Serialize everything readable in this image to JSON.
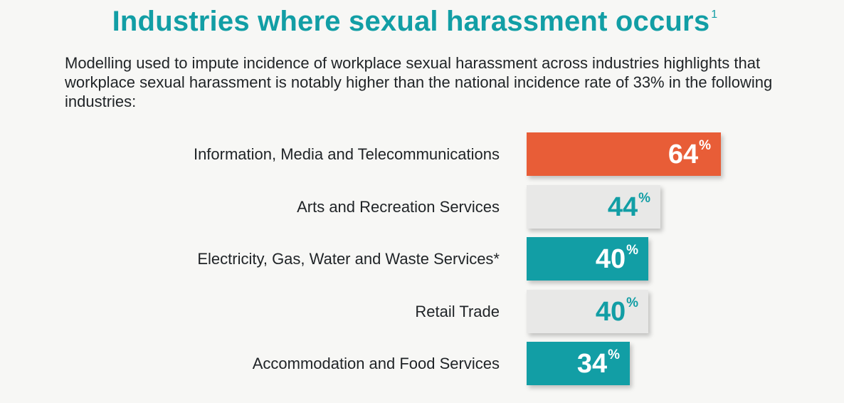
{
  "title": "Industries where sexual harassment occurs",
  "title_footnote": "1",
  "subtitle": "Modelling used to impute incidence of workplace sexual harassment across industries highlights that workplace sexual harassment is notably higher than the national incidence rate of 33% in the following industries:",
  "colors": {
    "orange": "#e85d37",
    "teal": "#129ea5",
    "light_gray": "#e8e8e7",
    "white_text": "#ffffff",
    "teal_text": "#129ea5"
  },
  "chart_data": {
    "type": "bar",
    "orientation": "horizontal",
    "categories": [
      "Information, Media and Telecommunications",
      "Arts and Recreation Services",
      "Electricity, Gas, Water and Waste Services*",
      "Retail Trade",
      "Accommodation and Food Services"
    ],
    "values": [
      64,
      44,
      40,
      40,
      34
    ],
    "value_unit": "%",
    "bar_colors": [
      "#e85d37",
      "#e8e8e7",
      "#129ea5",
      "#e8e8e7",
      "#129ea5"
    ],
    "label_colors": [
      "#ffffff",
      "#129ea5",
      "#ffffff",
      "#129ea5",
      "#ffffff"
    ],
    "title": "",
    "xlabel": "",
    "ylabel": "",
    "grid": false,
    "legend": "none"
  }
}
